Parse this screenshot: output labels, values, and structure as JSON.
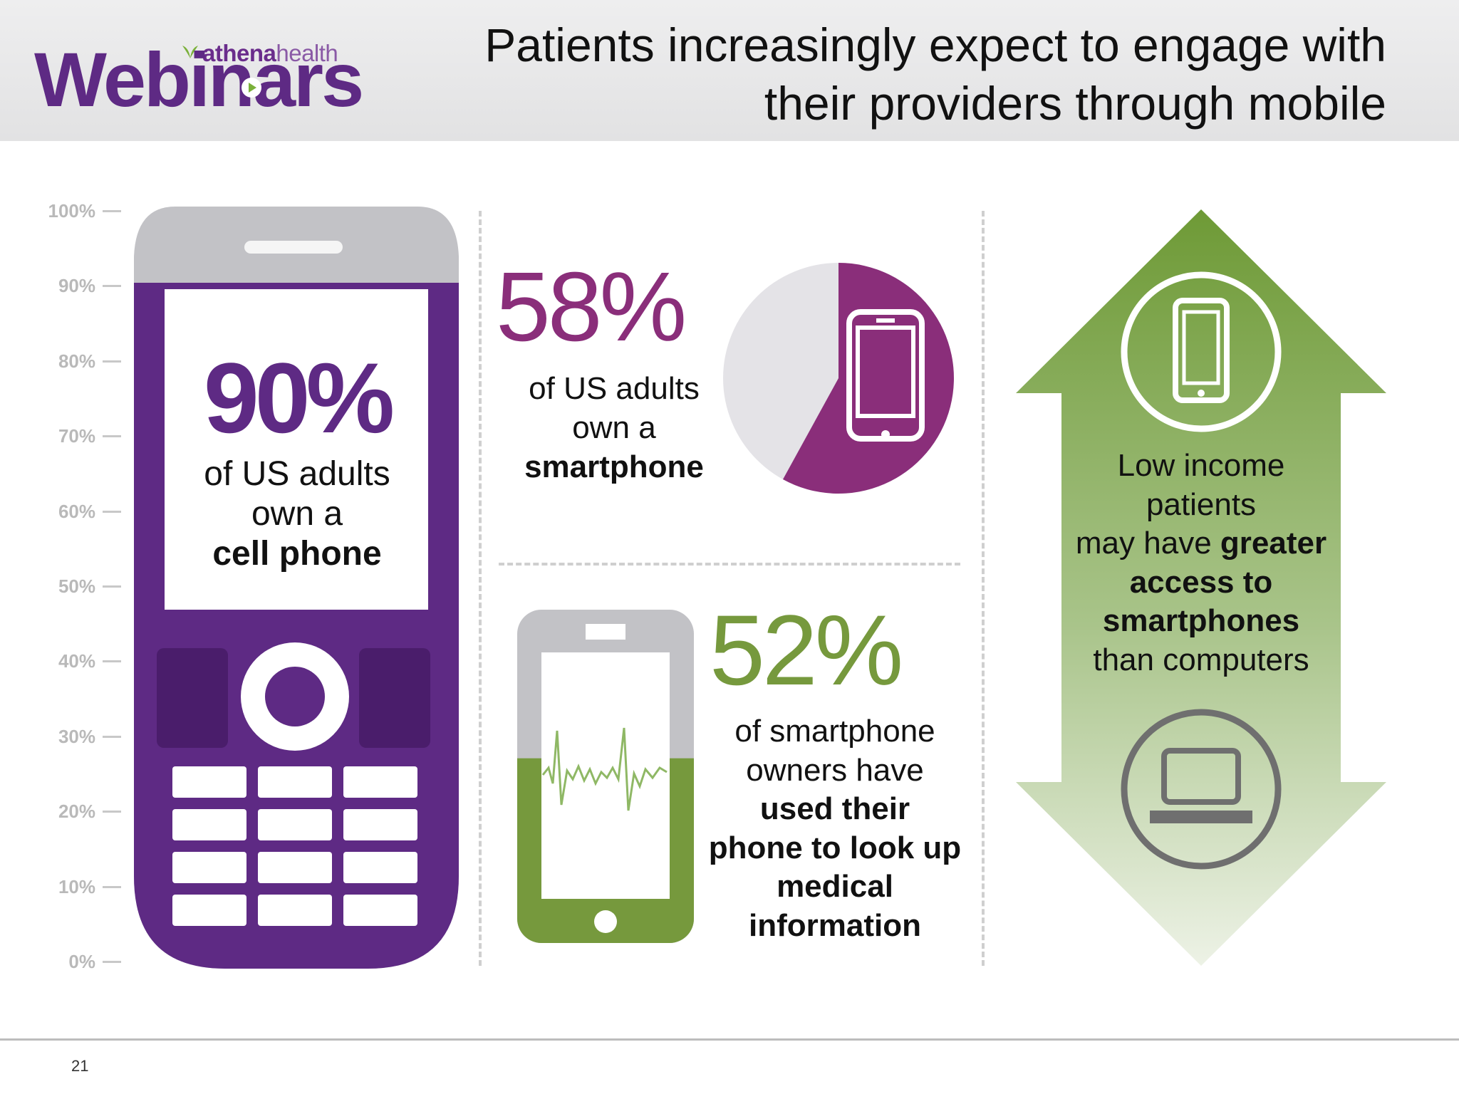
{
  "logo": {
    "brand": "athenahealth",
    "brand_bold": "athena",
    "brand_light": "health",
    "product": "Webinars"
  },
  "title": {
    "line1": "Patients increasingly expect to engage with",
    "line2": "their providers through mobile"
  },
  "axis_ticks": [
    "100%",
    "90%",
    "80%",
    "70%",
    "60%",
    "50%",
    "40%",
    "30%",
    "20%",
    "10%",
    "0%"
  ],
  "stat_cell": {
    "value": "90%",
    "fill_fraction": 0.9,
    "line1": "of US adults",
    "line2": "own a",
    "emphasis": "cell phone",
    "color": "#5e2a84"
  },
  "stat_smartphone": {
    "value": "58%",
    "fraction": 0.58,
    "line1": "of US adults",
    "line2": "own a",
    "emphasis": "smartphone",
    "color": "#8a2e7a"
  },
  "stat_medical": {
    "value": "52%",
    "fraction": 0.52,
    "line1": "of smartphone",
    "line2": "owners have",
    "emphasis_lines": [
      "used their",
      "phone to look up",
      "medical",
      "information"
    ],
    "color": "#76993d"
  },
  "low_income": {
    "line1": "Low income",
    "line2": "patients",
    "line3_plain": "may have ",
    "line3_bold": "greater",
    "bold_lines": [
      "access to",
      "smartphones"
    ],
    "line_last": "than computers",
    "color": "#7a9c46"
  },
  "icons": {
    "smartphone": "smartphone-icon",
    "laptop": "laptop-icon",
    "heartbeat": "heartbeat-icon",
    "cell_phone": "cell-phone-icon"
  },
  "footer": {
    "page_number": "21"
  }
}
